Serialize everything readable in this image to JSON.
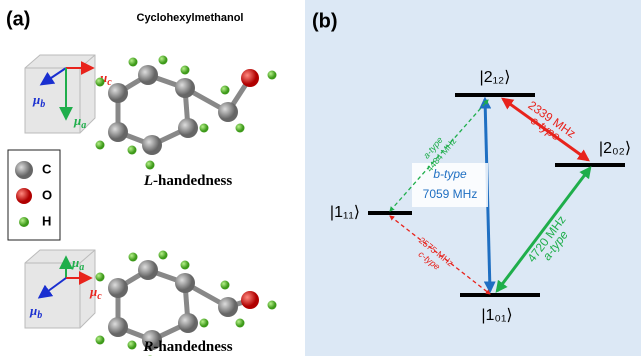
{
  "panel_a": {
    "label": "(a)",
    "title": "Cyclohexylmethanol",
    "legend": [
      "C",
      "O",
      "H"
    ],
    "molecules": [
      {
        "name_italic": "L",
        "name_rest": "-handedness",
        "axes": [
          {
            "symbol": "μ",
            "sub": "c"
          },
          {
            "symbol": "μ",
            "sub": "b"
          },
          {
            "symbol": "μ",
            "sub": "a"
          }
        ]
      },
      {
        "name_italic": "R",
        "name_rest": "-handedness",
        "axes": [
          {
            "symbol": "μ",
            "sub": "a"
          },
          {
            "symbol": "μ",
            "sub": "c"
          },
          {
            "symbol": "μ",
            "sub": "b"
          }
        ]
      }
    ]
  },
  "panel_b": {
    "label": "(b)",
    "levels": [
      "|2₁₂⟩",
      "|2₀₂⟩",
      "|1₁₁⟩",
      "|1₀₁⟩"
    ],
    "transitions": [
      {
        "type": "c-type",
        "frequency": "2339 MHz"
      },
      {
        "type": "a-type",
        "frequency": "4720 MHz"
      },
      {
        "type": "b-type",
        "frequency": "7059 MHz"
      },
      {
        "type": "a-type",
        "frequency": "4484 MHz"
      },
      {
        "type": "c-type",
        "frequency": "2575 MHz"
      }
    ]
  }
}
